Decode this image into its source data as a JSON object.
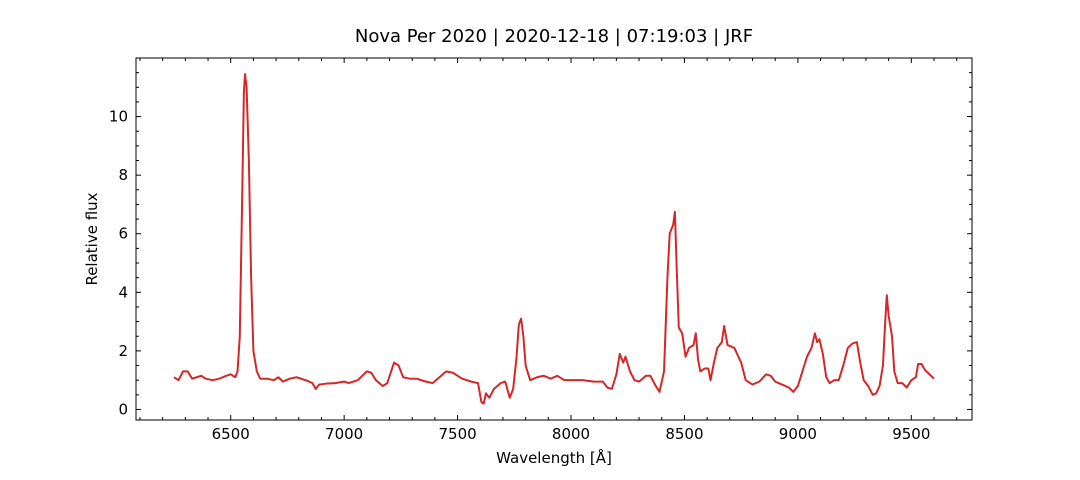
{
  "chart_data": {
    "type": "line",
    "title": "Nova Per 2020 | 2020-12-18 | 07:19:03 | JRF",
    "x_label": "Wavelength [Å]",
    "y_label": "Relative flux",
    "color": "#d62728",
    "xlim": [
      6082.5,
      9767.5
    ],
    "ylim": [
      -0.36,
      12.0
    ],
    "xticks": [
      6500,
      7000,
      7500,
      8000,
      8500,
      9000,
      9500
    ],
    "yticks": [
      0,
      2,
      4,
      6,
      8,
      10
    ],
    "xminorticks": [
      6100,
      6200,
      6300,
      6400,
      6600,
      6700,
      6800,
      6900,
      7100,
      7200,
      7300,
      7400,
      7600,
      7700,
      7800,
      7900,
      8100,
      8200,
      8300,
      8400,
      8600,
      8700,
      8800,
      8900,
      9100,
      9200,
      9300,
      9400,
      9600,
      9700
    ],
    "yminorticks": [
      0.5,
      1,
      1.5,
      2.5,
      3,
      3.5,
      4.5,
      5,
      5.5,
      6.5,
      7,
      7.5,
      8.5,
      9,
      9.5,
      10.5,
      11,
      11.5
    ],
    "x": [
      6250,
      6270,
      6290,
      6310,
      6330,
      6350,
      6370,
      6390,
      6420,
      6450,
      6480,
      6500,
      6520,
      6530,
      6540,
      6550,
      6558,
      6563,
      6570,
      6580,
      6590,
      6600,
      6615,
      6630,
      6660,
      6690,
      6710,
      6730,
      6760,
      6790,
      6830,
      6860,
      6875,
      6890,
      6920,
      6960,
      7000,
      7020,
      7060,
      7100,
      7120,
      7140,
      7170,
      7190,
      7220,
      7240,
      7260,
      7290,
      7320,
      7360,
      7390,
      7420,
      7450,
      7480,
      7520,
      7560,
      7590,
      7605,
      7615,
      7625,
      7640,
      7660,
      7690,
      7710,
      7730,
      7745,
      7760,
      7770,
      7780,
      7790,
      7800,
      7820,
      7850,
      7880,
      7910,
      7940,
      7970,
      8000,
      8050,
      8100,
      8140,
      8160,
      8180,
      8200,
      8215,
      8230,
      8240,
      8260,
      8280,
      8300,
      8330,
      8350,
      8370,
      8390,
      8410,
      8425,
      8435,
      8450,
      8458,
      8465,
      8475,
      8490,
      8505,
      8520,
      8540,
      8550,
      8560,
      8570,
      8590,
      8605,
      8615,
      8630,
      8645,
      8665,
      8675,
      8690,
      8720,
      8750,
      8770,
      8800,
      8830,
      8860,
      8880,
      8900,
      8930,
      8960,
      8980,
      9000,
      9020,
      9040,
      9060,
      9075,
      9085,
      9095,
      9110,
      9125,
      9140,
      9160,
      9180,
      9200,
      9220,
      9240,
      9260,
      9275,
      9290,
      9310,
      9330,
      9345,
      9360,
      9375,
      9385,
      9392,
      9400,
      9415,
      9425,
      9440,
      9460,
      9480,
      9500,
      9520,
      9530,
      9545,
      9560,
      9580,
      9600
    ],
    "values": [
      1.1,
      1.0,
      1.3,
      1.3,
      1.05,
      1.1,
      1.15,
      1.05,
      1.0,
      1.05,
      1.15,
      1.2,
      1.1,
      1.3,
      2.5,
      7.0,
      10.8,
      11.45,
      11.0,
      8.5,
      4.5,
      2.0,
      1.3,
      1.05,
      1.05,
      1.0,
      1.1,
      0.95,
      1.05,
      1.1,
      1.0,
      0.9,
      0.7,
      0.85,
      0.88,
      0.9,
      0.95,
      0.9,
      1.0,
      1.3,
      1.25,
      1.0,
      0.8,
      0.9,
      1.6,
      1.5,
      1.1,
      1.05,
      1.05,
      0.95,
      0.9,
      1.1,
      1.3,
      1.25,
      1.05,
      0.95,
      0.9,
      0.25,
      0.2,
      0.55,
      0.4,
      0.7,
      0.9,
      0.95,
      0.4,
      0.7,
      1.8,
      2.9,
      3.1,
      2.5,
      1.5,
      1.0,
      1.1,
      1.15,
      1.05,
      1.15,
      1.0,
      1.0,
      1.0,
      0.95,
      0.95,
      0.75,
      0.7,
      1.2,
      1.9,
      1.6,
      1.8,
      1.3,
      1.0,
      0.95,
      1.15,
      1.15,
      0.85,
      0.6,
      1.3,
      4.5,
      6.0,
      6.3,
      6.75,
      5.0,
      2.8,
      2.6,
      1.8,
      2.1,
      2.2,
      2.6,
      1.7,
      1.3,
      1.4,
      1.4,
      1.0,
      1.6,
      2.1,
      2.3,
      2.85,
      2.2,
      2.1,
      1.6,
      1.0,
      0.85,
      0.95,
      1.2,
      1.15,
      0.95,
      0.85,
      0.75,
      0.6,
      0.8,
      1.3,
      1.8,
      2.1,
      2.6,
      2.3,
      2.4,
      1.9,
      1.1,
      0.9,
      1.0,
      1.0,
      1.5,
      2.1,
      2.25,
      2.3,
      1.6,
      1.0,
      0.8,
      0.5,
      0.55,
      0.8,
      1.5,
      3.0,
      3.9,
      3.2,
      2.5,
      1.3,
      0.9,
      0.9,
      0.75,
      1.0,
      1.1,
      1.55,
      1.55,
      1.35,
      1.2,
      1.05
    ]
  }
}
